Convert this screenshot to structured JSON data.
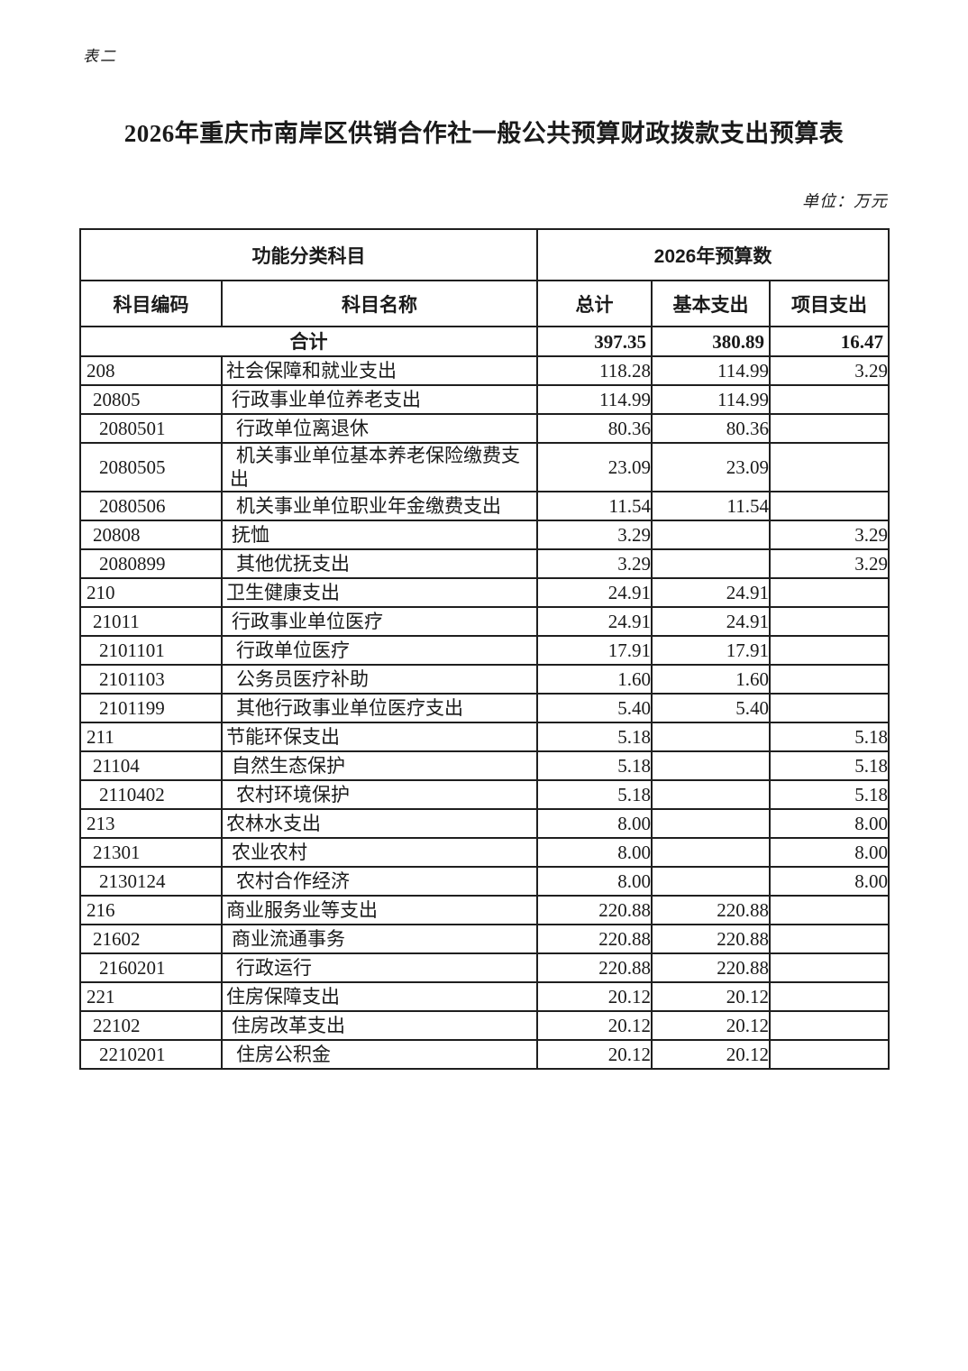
{
  "page": {
    "corner_label": "表二",
    "title": "2026年重庆市南岸区供销合作社一般公共预算财政拨款支出预算表",
    "unit_note": "单位：万元"
  },
  "table": {
    "header": {
      "group_subject": "功能分类科目",
      "group_budget": "2026年预算数",
      "col_code": "科目编码",
      "col_name": "科目名称",
      "col_total": "总计",
      "col_basic": "基本支出",
      "col_project": "项目支出"
    },
    "total_row": {
      "label": "合计",
      "total": "397.35",
      "basic": "380.89",
      "project": "16.47"
    },
    "rows": [
      {
        "code": "208",
        "name": "社会保障和就业支出",
        "level": 1,
        "total": "118.28",
        "basic": "114.99",
        "project": "3.29"
      },
      {
        "code": "20805",
        "name": "行政事业单位养老支出",
        "level": 2,
        "total": "114.99",
        "basic": "114.99",
        "project": ""
      },
      {
        "code": "2080501",
        "name": "行政单位离退休",
        "level": 3,
        "total": "80.36",
        "basic": "80.36",
        "project": ""
      },
      {
        "code": "2080505",
        "name": "机关事业单位基本养老保险缴费支出",
        "level": 3,
        "total": "23.09",
        "basic": "23.09",
        "project": ""
      },
      {
        "code": "2080506",
        "name": "机关事业单位职业年金缴费支出",
        "level": 3,
        "total": "11.54",
        "basic": "11.54",
        "project": ""
      },
      {
        "code": "20808",
        "name": "抚恤",
        "level": 2,
        "total": "3.29",
        "basic": "",
        "project": "3.29"
      },
      {
        "code": "2080899",
        "name": "其他优抚支出",
        "level": 3,
        "total": "3.29",
        "basic": "",
        "project": "3.29"
      },
      {
        "code": "210",
        "name": "卫生健康支出",
        "level": 1,
        "total": "24.91",
        "basic": "24.91",
        "project": ""
      },
      {
        "code": "21011",
        "name": "行政事业单位医疗",
        "level": 2,
        "total": "24.91",
        "basic": "24.91",
        "project": ""
      },
      {
        "code": "2101101",
        "name": "行政单位医疗",
        "level": 3,
        "total": "17.91",
        "basic": "17.91",
        "project": ""
      },
      {
        "code": "2101103",
        "name": "公务员医疗补助",
        "level": 3,
        "total": "1.60",
        "basic": "1.60",
        "project": ""
      },
      {
        "code": "2101199",
        "name": "其他行政事业单位医疗支出",
        "level": 3,
        "total": "5.40",
        "basic": "5.40",
        "project": ""
      },
      {
        "code": "211",
        "name": "节能环保支出",
        "level": 1,
        "total": "5.18",
        "basic": "",
        "project": "5.18"
      },
      {
        "code": "21104",
        "name": "自然生态保护",
        "level": 2,
        "total": "5.18",
        "basic": "",
        "project": "5.18"
      },
      {
        "code": "2110402",
        "name": "农村环境保护",
        "level": 3,
        "total": "5.18",
        "basic": "",
        "project": "5.18"
      },
      {
        "code": "213",
        "name": "农林水支出",
        "level": 1,
        "total": "8.00",
        "basic": "",
        "project": "8.00"
      },
      {
        "code": "21301",
        "name": "农业农村",
        "level": 2,
        "total": "8.00",
        "basic": "",
        "project": "8.00"
      },
      {
        "code": "2130124",
        "name": "农村合作经济",
        "level": 3,
        "total": "8.00",
        "basic": "",
        "project": "8.00"
      },
      {
        "code": "216",
        "name": "商业服务业等支出",
        "level": 1,
        "total": "220.88",
        "basic": "220.88",
        "project": ""
      },
      {
        "code": "21602",
        "name": "商业流通事务",
        "level": 2,
        "total": "220.88",
        "basic": "220.88",
        "project": ""
      },
      {
        "code": "2160201",
        "name": "行政运行",
        "level": 3,
        "total": "220.88",
        "basic": "220.88",
        "project": ""
      },
      {
        "code": "221",
        "name": "住房保障支出",
        "level": 1,
        "total": "20.12",
        "basic": "20.12",
        "project": ""
      },
      {
        "code": "22102",
        "name": "住房改革支出",
        "level": 2,
        "total": "20.12",
        "basic": "20.12",
        "project": ""
      },
      {
        "code": "2210201",
        "name": "住房公积金",
        "level": 3,
        "total": "20.12",
        "basic": "20.12",
        "project": ""
      }
    ]
  }
}
